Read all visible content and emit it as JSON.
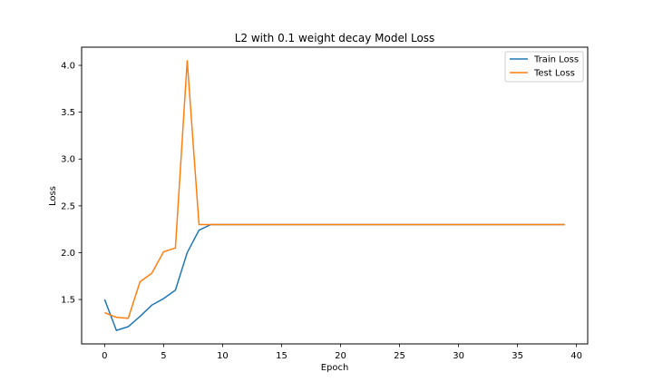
{
  "chart_data": {
    "type": "line",
    "title": "L2 with 0.1 weight decay Model Loss",
    "xlabel": "Epoch",
    "ylabel": "Loss",
    "xlim": [
      -1.95,
      40.95
    ],
    "ylim": [
      1.026,
      4.194
    ],
    "xticks": [
      0,
      5,
      10,
      15,
      20,
      25,
      30,
      35,
      40
    ],
    "yticks": [
      1.5,
      2.0,
      2.5,
      3.0,
      3.5,
      4.0
    ],
    "ytick_labels": [
      "1.5",
      "2.0",
      "2.5",
      "3.0",
      "3.5",
      "4.0"
    ],
    "grid": false,
    "legend_position": "top-right",
    "x": [
      0,
      1,
      2,
      3,
      4,
      5,
      6,
      7,
      8,
      9,
      10,
      11,
      12,
      13,
      14,
      15,
      16,
      17,
      18,
      19,
      20,
      21,
      22,
      23,
      24,
      25,
      26,
      27,
      28,
      29,
      30,
      31,
      32,
      33,
      34,
      35,
      36,
      37,
      38,
      39
    ],
    "series": [
      {
        "name": "Train Loss",
        "color": "#1f77b4",
        "values": [
          1.5,
          1.17,
          1.21,
          1.32,
          1.44,
          1.51,
          1.6,
          2.0,
          2.24,
          2.3,
          2.3,
          2.3,
          2.3,
          2.3,
          2.3,
          2.3,
          2.3,
          2.3,
          2.3,
          2.3,
          2.3,
          2.3,
          2.3,
          2.3,
          2.3,
          2.3,
          2.3,
          2.3,
          2.3,
          2.3,
          2.3,
          2.3,
          2.3,
          2.3,
          2.3,
          2.3,
          2.3,
          2.3,
          2.3,
          2.3
        ]
      },
      {
        "name": "Test Loss",
        "color": "#ff7f0e",
        "values": [
          1.36,
          1.31,
          1.3,
          1.69,
          1.78,
          2.01,
          2.05,
          4.05,
          2.3,
          2.3,
          2.3,
          2.3,
          2.3,
          2.3,
          2.3,
          2.3,
          2.3,
          2.3,
          2.3,
          2.3,
          2.3,
          2.3,
          2.3,
          2.3,
          2.3,
          2.3,
          2.3,
          2.3,
          2.3,
          2.3,
          2.3,
          2.3,
          2.3,
          2.3,
          2.3,
          2.3,
          2.3,
          2.3,
          2.3,
          2.3
        ]
      }
    ]
  }
}
